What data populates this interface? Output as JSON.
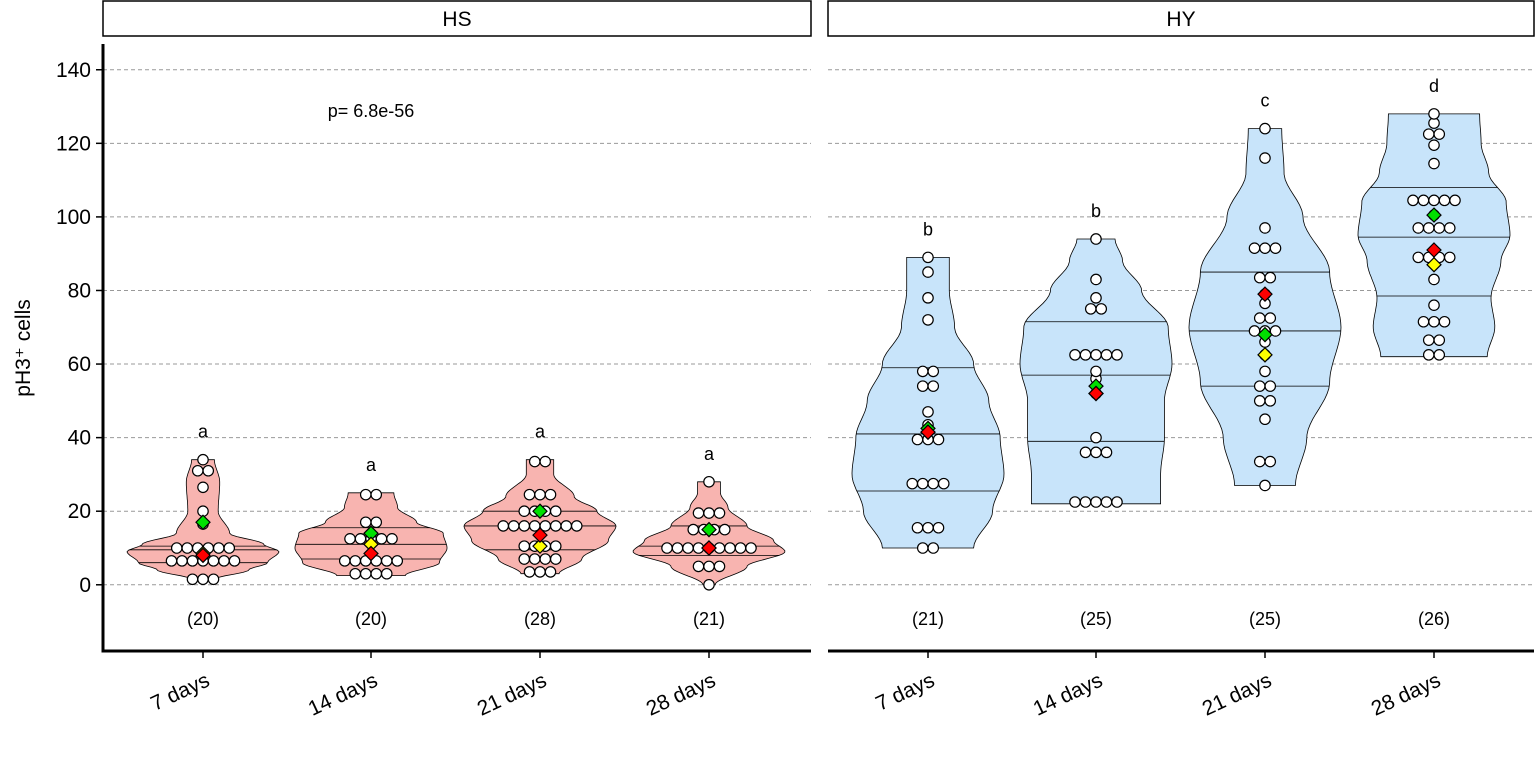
{
  "chart_data": {
    "type": "violin",
    "ylabel": "pH3⁺ cells",
    "ylim": [
      -18,
      147
    ],
    "yticks": [
      0,
      20,
      40,
      60,
      80,
      100,
      120,
      140
    ],
    "ytick_labels": [
      "0",
      "20",
      "40",
      "60",
      "80",
      "100",
      "120",
      "140"
    ],
    "categories": [
      "7 days",
      "14 days",
      "21 days",
      "28 days"
    ],
    "grid": "horizontal-dashed",
    "marker_colors": {
      "green": "#00e000",
      "red": "#ff0000",
      "yellow": "#ffff00"
    },
    "panels": [
      {
        "name": "HS",
        "fill": "#f8b4b0",
        "annotation": "p= 6.8e-56",
        "groups": [
          {
            "label": "7 days",
            "n": "(20)",
            "letter": "a",
            "min": 1.5,
            "max": 34,
            "q1": 6,
            "median": 9.5,
            "q3": 10.5,
            "shape": [
              [
                1.5,
                0.15
              ],
              [
                4,
                0.6
              ],
              [
                6,
                0.85
              ],
              [
                9,
                1.0
              ],
              [
                11,
                0.8
              ],
              [
                14,
                0.35
              ],
              [
                20,
                0.2
              ],
              [
                28,
                0.22
              ],
              [
                34,
                0.15
              ]
            ],
            "points": [
              1.5,
              1.5,
              1.5,
              6.5,
              6.5,
              6.5,
              6.5,
              6.5,
              6.5,
              6.5,
              10,
              10,
              10,
              10,
              10,
              10,
              16.5,
              20,
              26.5,
              31,
              31,
              34
            ],
            "green": 17,
            "red": 8,
            "yellow": 8.5
          },
          {
            "label": "14 days",
            "n": "(20)",
            "letter": "a",
            "min": 2.5,
            "max": 25,
            "q1": 7,
            "median": 11,
            "q3": 15.5,
            "shape": [
              [
                2.5,
                0.45
              ],
              [
                6,
                0.9
              ],
              [
                10,
                1.0
              ],
              [
                14,
                0.95
              ],
              [
                17,
                0.6
              ],
              [
                21,
                0.35
              ],
              [
                25,
                0.3
              ]
            ],
            "points": [
              3,
              3,
              3,
              3,
              6.5,
              6.5,
              6.5,
              6.5,
              6.5,
              6.5,
              12.5,
              12.5,
              12.5,
              12.5,
              12.5,
              17,
              17,
              24.5,
              24.5
            ],
            "green": 14,
            "red": 8.5,
            "yellow": 11
          },
          {
            "label": "21 days",
            "n": "(28)",
            "letter": "a",
            "min": 3,
            "max": 34,
            "q1": 9.5,
            "median": 16,
            "q3": 20,
            "shape": [
              [
                3,
                0.25
              ],
              [
                7,
                0.55
              ],
              [
                12,
                0.9
              ],
              [
                16,
                1.0
              ],
              [
                20,
                0.75
              ],
              [
                24,
                0.45
              ],
              [
                30,
                0.18
              ],
              [
                34,
                0.18
              ]
            ],
            "points": [
              3.5,
              3.5,
              3.5,
              7,
              7,
              7,
              7,
              10.5,
              10.5,
              10.5,
              10.5,
              16,
              16,
              16,
              16,
              16,
              16,
              16,
              16,
              20,
              20,
              20,
              20,
              24.5,
              24.5,
              24.5,
              33.5,
              33.5
            ],
            "green": 20,
            "red": 13.5,
            "yellow": 10.5
          },
          {
            "label": "28 days",
            "n": "(21)",
            "letter": "a",
            "min": 0,
            "max": 28,
            "q1": 8,
            "median": 10.5,
            "q3": 16,
            "shape": [
              [
                0,
                0.08
              ],
              [
                5,
                0.5
              ],
              [
                9,
                1.0
              ],
              [
                12,
                0.85
              ],
              [
                16,
                0.5
              ],
              [
                21,
                0.25
              ],
              [
                25,
                0.15
              ],
              [
                28,
                0.15
              ]
            ],
            "points": [
              0,
              5,
              5,
              5,
              10,
              10,
              10,
              10,
              10,
              10,
              10,
              10,
              10,
              15,
              15,
              15,
              15,
              19.5,
              19.5,
              19.5,
              28
            ],
            "green": 15,
            "red": 10,
            "yellow": 10
          }
        ]
      },
      {
        "name": "HY",
        "fill": "#c8e4fa",
        "annotation": "",
        "groups": [
          {
            "label": "7 days",
            "n": "(21)",
            "letter": "b",
            "min": 10,
            "max": 89,
            "q1": 25.5,
            "median": 41,
            "q3": 59,
            "shape": [
              [
                10,
                0.6
              ],
              [
                20,
                0.85
              ],
              [
                30,
                1.0
              ],
              [
                40,
                0.95
              ],
              [
                50,
                0.8
              ],
              [
                60,
                0.6
              ],
              [
                70,
                0.35
              ],
              [
                80,
                0.28
              ],
              [
                89,
                0.28
              ]
            ],
            "points": [
              10,
              10,
              15.5,
              15.5,
              15.5,
              27.5,
              27.5,
              27.5,
              27.5,
              39.5,
              39.5,
              39.5,
              43.5,
              47,
              54,
              54,
              58,
              58,
              72,
              78,
              85,
              89
            ],
            "green": 42.5,
            "red": 41.5,
            "yellow": 41.5
          },
          {
            "label": "14 days",
            "n": "(25)",
            "letter": "b",
            "min": 22,
            "max": 94,
            "q1": 39,
            "median": 57,
            "q3": 71.5,
            "shape": [
              [
                22,
                0.85
              ],
              [
                30,
                0.85
              ],
              [
                40,
                0.9
              ],
              [
                50,
                0.9
              ],
              [
                60,
                1.0
              ],
              [
                70,
                0.95
              ],
              [
                80,
                0.6
              ],
              [
                88,
                0.35
              ],
              [
                94,
                0.25
              ]
            ],
            "points": [
              22.5,
              22.5,
              22.5,
              22.5,
              22.5,
              36,
              36,
              36,
              40,
              52,
              56,
              58,
              62.5,
              62.5,
              62.5,
              62.5,
              62.5,
              75,
              75,
              78,
              83,
              94
            ],
            "green": 54,
            "red": 52,
            "yellow": 52
          },
          {
            "label": "21 days",
            "n": "(25)",
            "letter": "c",
            "min": 27,
            "max": 124,
            "q1": 54,
            "median": 69,
            "q3": 85,
            "shape": [
              [
                27,
                0.4
              ],
              [
                40,
                0.55
              ],
              [
                55,
                0.85
              ],
              [
                70,
                1.0
              ],
              [
                85,
                0.85
              ],
              [
                100,
                0.5
              ],
              [
                112,
                0.25
              ],
              [
                124,
                0.22
              ]
            ],
            "points": [
              27,
              33.5,
              33.5,
              45,
              50,
              50,
              54,
              54,
              58,
              62.5,
              66,
              69,
              69,
              69,
              72.5,
              72.5,
              76.5,
              79,
              83.5,
              83.5,
              91.5,
              91.5,
              91.5,
              97,
              116,
              124
            ],
            "green": 68,
            "red": 79,
            "yellow": 62.5
          },
          {
            "label": "28 days",
            "n": "(26)",
            "letter": "d",
            "min": 62,
            "max": 128,
            "q1": 78.5,
            "median": 94.5,
            "q3": 108,
            "shape": [
              [
                62,
                0.7
              ],
              [
                70,
                0.8
              ],
              [
                78,
                0.75
              ],
              [
                88,
                0.88
              ],
              [
                95,
                1.0
              ],
              [
                104,
                0.95
              ],
              [
                112,
                0.72
              ],
              [
                120,
                0.62
              ],
              [
                128,
                0.6
              ]
            ],
            "points": [
              62.5,
              62.5,
              66.5,
              66.5,
              71.5,
              71.5,
              71.5,
              76,
              83,
              89,
              89,
              89,
              89,
              97,
              97,
              97,
              97,
              100.5,
              104.5,
              104.5,
              104.5,
              104.5,
              104.5,
              114.5,
              119.5,
              122.5,
              122.5,
              125.5,
              128
            ],
            "green": 100.5,
            "red": 91,
            "yellow": 87
          }
        ]
      }
    ]
  }
}
